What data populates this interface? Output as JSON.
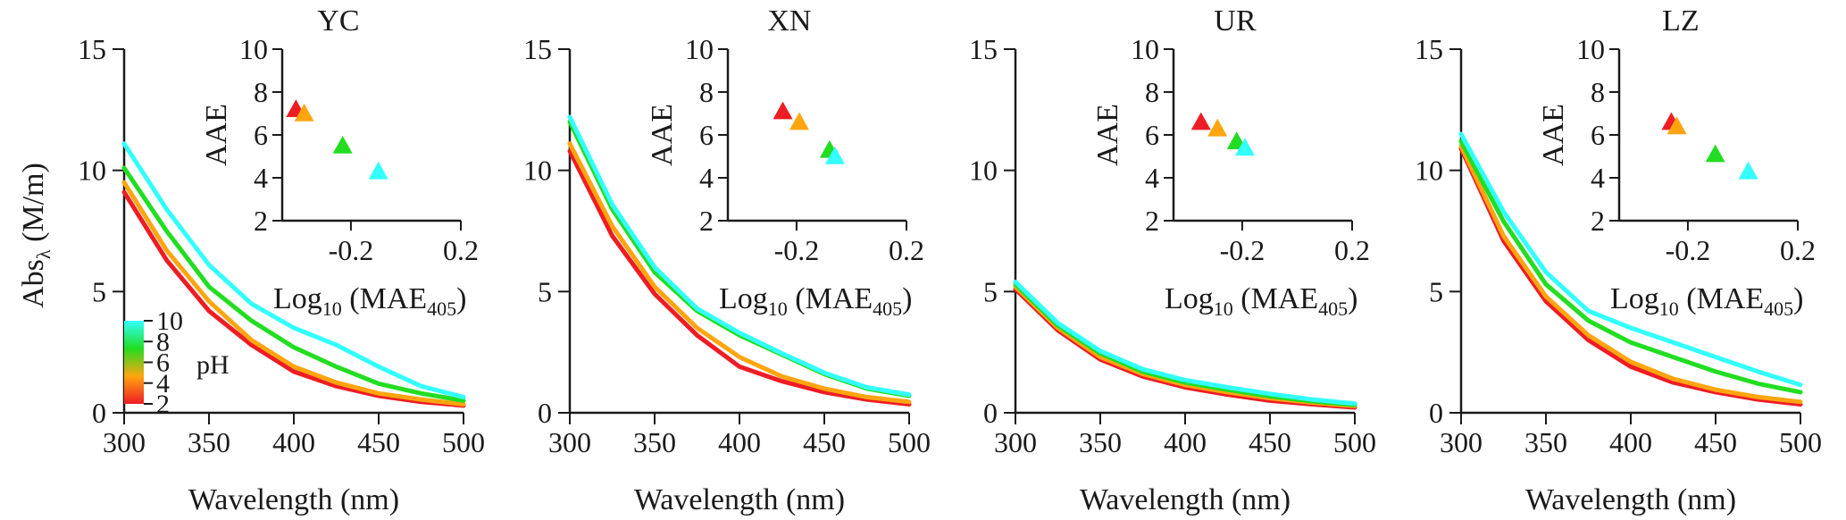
{
  "chart_data": [
    {
      "type": "line",
      "title": "YC",
      "xlabel": "Wavelength (nm)",
      "ylabel_main": "Abs",
      "ylabel_sub": "λ",
      "ylabel_unit": " (M/m)",
      "xlim": [
        300,
        500
      ],
      "ylim": [
        0,
        15
      ],
      "xticks": [
        "300",
        "350",
        "400",
        "450",
        "500"
      ],
      "yticks": [
        "0",
        "5",
        "10",
        "15"
      ],
      "x": [
        300,
        325,
        350,
        375,
        400,
        425,
        450,
        475,
        500
      ],
      "series": [
        {
          "color": "#ee1c25",
          "values": [
            9.1,
            6.3,
            4.2,
            2.8,
            1.7,
            1.1,
            0.7,
            0.45,
            0.3
          ]
        },
        {
          "color": "#ffa50f",
          "values": [
            9.5,
            6.7,
            4.6,
            3.0,
            1.9,
            1.25,
            0.8,
            0.55,
            0.35
          ]
        },
        {
          "color": "#22dd22",
          "values": [
            10.1,
            7.5,
            5.2,
            3.8,
            2.7,
            1.9,
            1.2,
            0.8,
            0.5
          ]
        },
        {
          "color": "#33ffff",
          "values": [
            11.1,
            8.4,
            6.1,
            4.5,
            3.5,
            2.8,
            1.9,
            1.1,
            0.65
          ]
        }
      ],
      "inset": {
        "type": "scatter",
        "xlabel_main": "Log",
        "xlabel_sub1": "10",
        "xlabel_mid": " (MAE",
        "xlabel_sub2": "405",
        "xlabel_end": ")",
        "ylabel": "AAE",
        "xlim": [
          -0.45,
          0.2
        ],
        "ylim": [
          2,
          10
        ],
        "xticks": [
          "-0.2",
          "0.2"
        ],
        "xtick_values": [
          -0.2,
          0.2
        ],
        "yticks": [
          "2",
          "4",
          "6",
          "8",
          "10"
        ],
        "points": [
          {
            "x": -0.4,
            "y": 7.2,
            "color": "#ee1c25"
          },
          {
            "x": -0.37,
            "y": 7.0,
            "color": "#ffa50f"
          },
          {
            "x": -0.23,
            "y": 5.5,
            "color": "#22dd22"
          },
          {
            "x": -0.1,
            "y": 4.3,
            "color": "#33ffff"
          }
        ]
      }
    },
    {
      "type": "line",
      "title": "XN",
      "xlabel": "Wavelength (nm)",
      "xlim": [
        300,
        500
      ],
      "ylim": [
        0,
        15
      ],
      "xticks": [
        "300",
        "350",
        "400",
        "450",
        "500"
      ],
      "yticks": [
        "0",
        "5",
        "10",
        "15"
      ],
      "x": [
        300,
        325,
        350,
        375,
        400,
        425,
        450,
        475,
        500
      ],
      "series": [
        {
          "color": "#ee1c25",
          "values": [
            10.8,
            7.3,
            4.9,
            3.2,
            1.9,
            1.3,
            0.85,
            0.55,
            0.35
          ]
        },
        {
          "color": "#ffa50f",
          "values": [
            11.1,
            7.7,
            5.2,
            3.5,
            2.3,
            1.5,
            1.0,
            0.65,
            0.45
          ]
        },
        {
          "color": "#22dd22",
          "values": [
            12.0,
            8.4,
            5.8,
            4.2,
            3.2,
            2.4,
            1.6,
            1.0,
            0.7
          ]
        },
        {
          "color": "#33ffff",
          "values": [
            12.2,
            8.6,
            6.0,
            4.3,
            3.3,
            2.45,
            1.65,
            1.05,
            0.75
          ]
        }
      ],
      "inset": {
        "type": "scatter",
        "xlabel_main": "Log",
        "xlabel_sub1": "10",
        "xlabel_mid": " (MAE",
        "xlabel_sub2": "405",
        "xlabel_end": ")",
        "ylabel": "AAE",
        "xlim": [
          -0.45,
          0.2
        ],
        "ylim": [
          2,
          10
        ],
        "xticks": [
          "-0.2",
          "0.2"
        ],
        "xtick_values": [
          -0.2,
          0.2
        ],
        "yticks": [
          "2",
          "4",
          "6",
          "8",
          "10"
        ],
        "points": [
          {
            "x": -0.25,
            "y": 7.1,
            "color": "#ee1c25"
          },
          {
            "x": -0.19,
            "y": 6.6,
            "color": "#ffa50f"
          },
          {
            "x": -0.08,
            "y": 5.3,
            "color": "#22dd22"
          },
          {
            "x": -0.06,
            "y": 5.0,
            "color": "#33ffff"
          }
        ]
      }
    },
    {
      "type": "line",
      "title": "UR",
      "xlabel": "Wavelength (nm)",
      "xlim": [
        300,
        500
      ],
      "ylim": [
        0,
        15
      ],
      "xticks": [
        "300",
        "350",
        "400",
        "450",
        "500"
      ],
      "yticks": [
        "0",
        "5",
        "10",
        "15"
      ],
      "x": [
        300,
        325,
        350,
        375,
        400,
        425,
        450,
        475,
        500
      ],
      "series": [
        {
          "color": "#ee1c25",
          "values": [
            5.1,
            3.4,
            2.2,
            1.5,
            1.05,
            0.75,
            0.5,
            0.35,
            0.22
          ]
        },
        {
          "color": "#ffa50f",
          "values": [
            5.2,
            3.5,
            2.3,
            1.6,
            1.15,
            0.85,
            0.6,
            0.42,
            0.28
          ]
        },
        {
          "color": "#22dd22",
          "values": [
            5.3,
            3.6,
            2.45,
            1.7,
            1.25,
            0.95,
            0.68,
            0.48,
            0.32
          ]
        },
        {
          "color": "#33ffff",
          "values": [
            5.4,
            3.7,
            2.55,
            1.8,
            1.35,
            1.05,
            0.78,
            0.55,
            0.38
          ]
        }
      ],
      "inset": {
        "type": "scatter",
        "xlabel_main": "Log",
        "xlabel_sub1": "10",
        "xlabel_mid": " (MAE",
        "xlabel_sub2": "405",
        "xlabel_end": ")",
        "ylabel": "AAE",
        "xlim": [
          -0.45,
          0.2
        ],
        "ylim": [
          2,
          10
        ],
        "xticks": [
          "-0.2",
          "0.2"
        ],
        "xtick_values": [
          -0.2,
          0.2
        ],
        "yticks": [
          "2",
          "4",
          "6",
          "8",
          "10"
        ],
        "points": [
          {
            "x": -0.35,
            "y": 6.6,
            "color": "#ee1c25"
          },
          {
            "x": -0.29,
            "y": 6.3,
            "color": "#ffa50f"
          },
          {
            "x": -0.22,
            "y": 5.7,
            "color": "#22dd22"
          },
          {
            "x": -0.19,
            "y": 5.4,
            "color": "#33ffff"
          }
        ]
      }
    },
    {
      "type": "line",
      "title": "LZ",
      "xlabel": "Wavelength (nm)",
      "xlim": [
        300,
        500
      ],
      "ylim": [
        0,
        15
      ],
      "xticks": [
        "300",
        "350",
        "400",
        "450",
        "500"
      ],
      "yticks": [
        "0",
        "5",
        "10",
        "15"
      ],
      "x": [
        300,
        325,
        350,
        375,
        400,
        425,
        450,
        475,
        500
      ],
      "series": [
        {
          "color": "#ee1c25",
          "values": [
            10.9,
            7.1,
            4.6,
            3.0,
            1.9,
            1.25,
            0.85,
            0.55,
            0.35
          ]
        },
        {
          "color": "#ffa50f",
          "values": [
            11.0,
            7.3,
            4.8,
            3.2,
            2.1,
            1.4,
            0.95,
            0.65,
            0.45
          ]
        },
        {
          "color": "#22dd22",
          "values": [
            11.2,
            7.9,
            5.3,
            3.8,
            2.9,
            2.3,
            1.7,
            1.2,
            0.85
          ]
        },
        {
          "color": "#33ffff",
          "values": [
            11.5,
            8.3,
            5.8,
            4.2,
            3.5,
            2.9,
            2.3,
            1.7,
            1.15
          ]
        }
      ],
      "inset": {
        "type": "scatter",
        "xlabel_main": "Log",
        "xlabel_sub1": "10",
        "xlabel_mid": " (MAE",
        "xlabel_sub2": "405",
        "xlabel_end": ")",
        "ylabel": "AAE",
        "xlim": [
          -0.45,
          0.2
        ],
        "ylim": [
          2,
          10
        ],
        "xticks": [
          "-0.2",
          "0.2"
        ],
        "xtick_values": [
          -0.2,
          0.2
        ],
        "yticks": [
          "2",
          "4",
          "6",
          "8",
          "10"
        ],
        "points": [
          {
            "x": -0.26,
            "y": 6.6,
            "color": "#ee1c25"
          },
          {
            "x": -0.24,
            "y": 6.4,
            "color": "#ffa50f"
          },
          {
            "x": -0.1,
            "y": 5.1,
            "color": "#22dd22"
          },
          {
            "x": 0.02,
            "y": 4.3,
            "color": "#33ffff"
          }
        ]
      }
    }
  ],
  "colorbar": {
    "label": "pH",
    "ticks": [
      "2",
      "4",
      "6",
      "8",
      "10"
    ],
    "range": [
      2,
      10
    ],
    "stops": [
      "#ee1c25",
      "#ffa50f",
      "#22dd22",
      "#33ffff"
    ]
  }
}
